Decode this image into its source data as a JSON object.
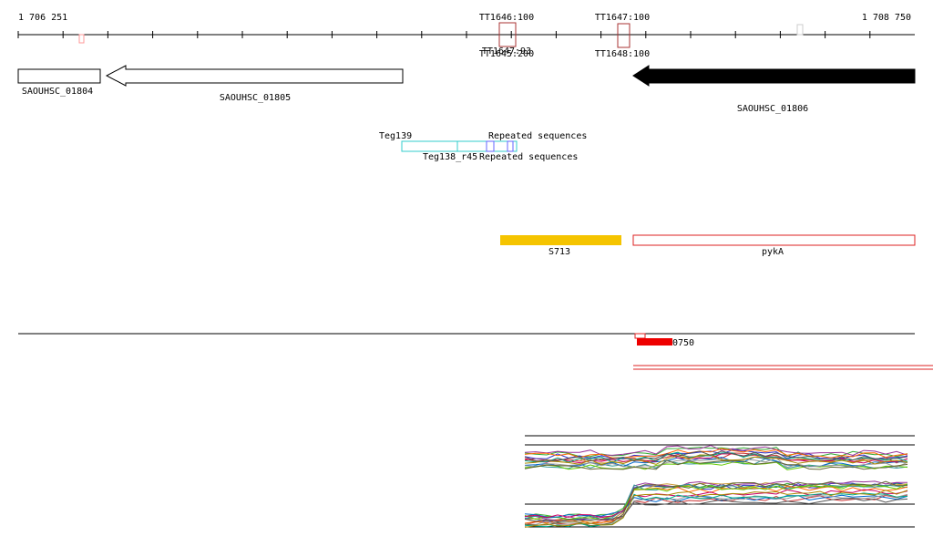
{
  "ruler": {
    "start": "1 706 251",
    "end": "1 708 750"
  },
  "terminators": [
    {
      "label": "TT1646:100"
    },
    {
      "label": "TT1647:100"
    },
    {
      "label": "TT1647:93"
    },
    {
      "label": "TT1645:200"
    },
    {
      "label": "TT1648:100"
    }
  ],
  "genes": [
    {
      "label": "SAOUHSC_01804"
    },
    {
      "label": "SAOUHSC_01805"
    },
    {
      "label": "SAOUHSC_01806"
    }
  ],
  "features": [
    {
      "label": "Teg139"
    },
    {
      "label": "Repeated sequences"
    },
    {
      "label": "Teg138_r45"
    },
    {
      "label": "Repeated sequences"
    }
  ],
  "regions": [
    {
      "label": "S713"
    },
    {
      "label": "pykA"
    }
  ],
  "transcript": {
    "label": "0750"
  }
}
